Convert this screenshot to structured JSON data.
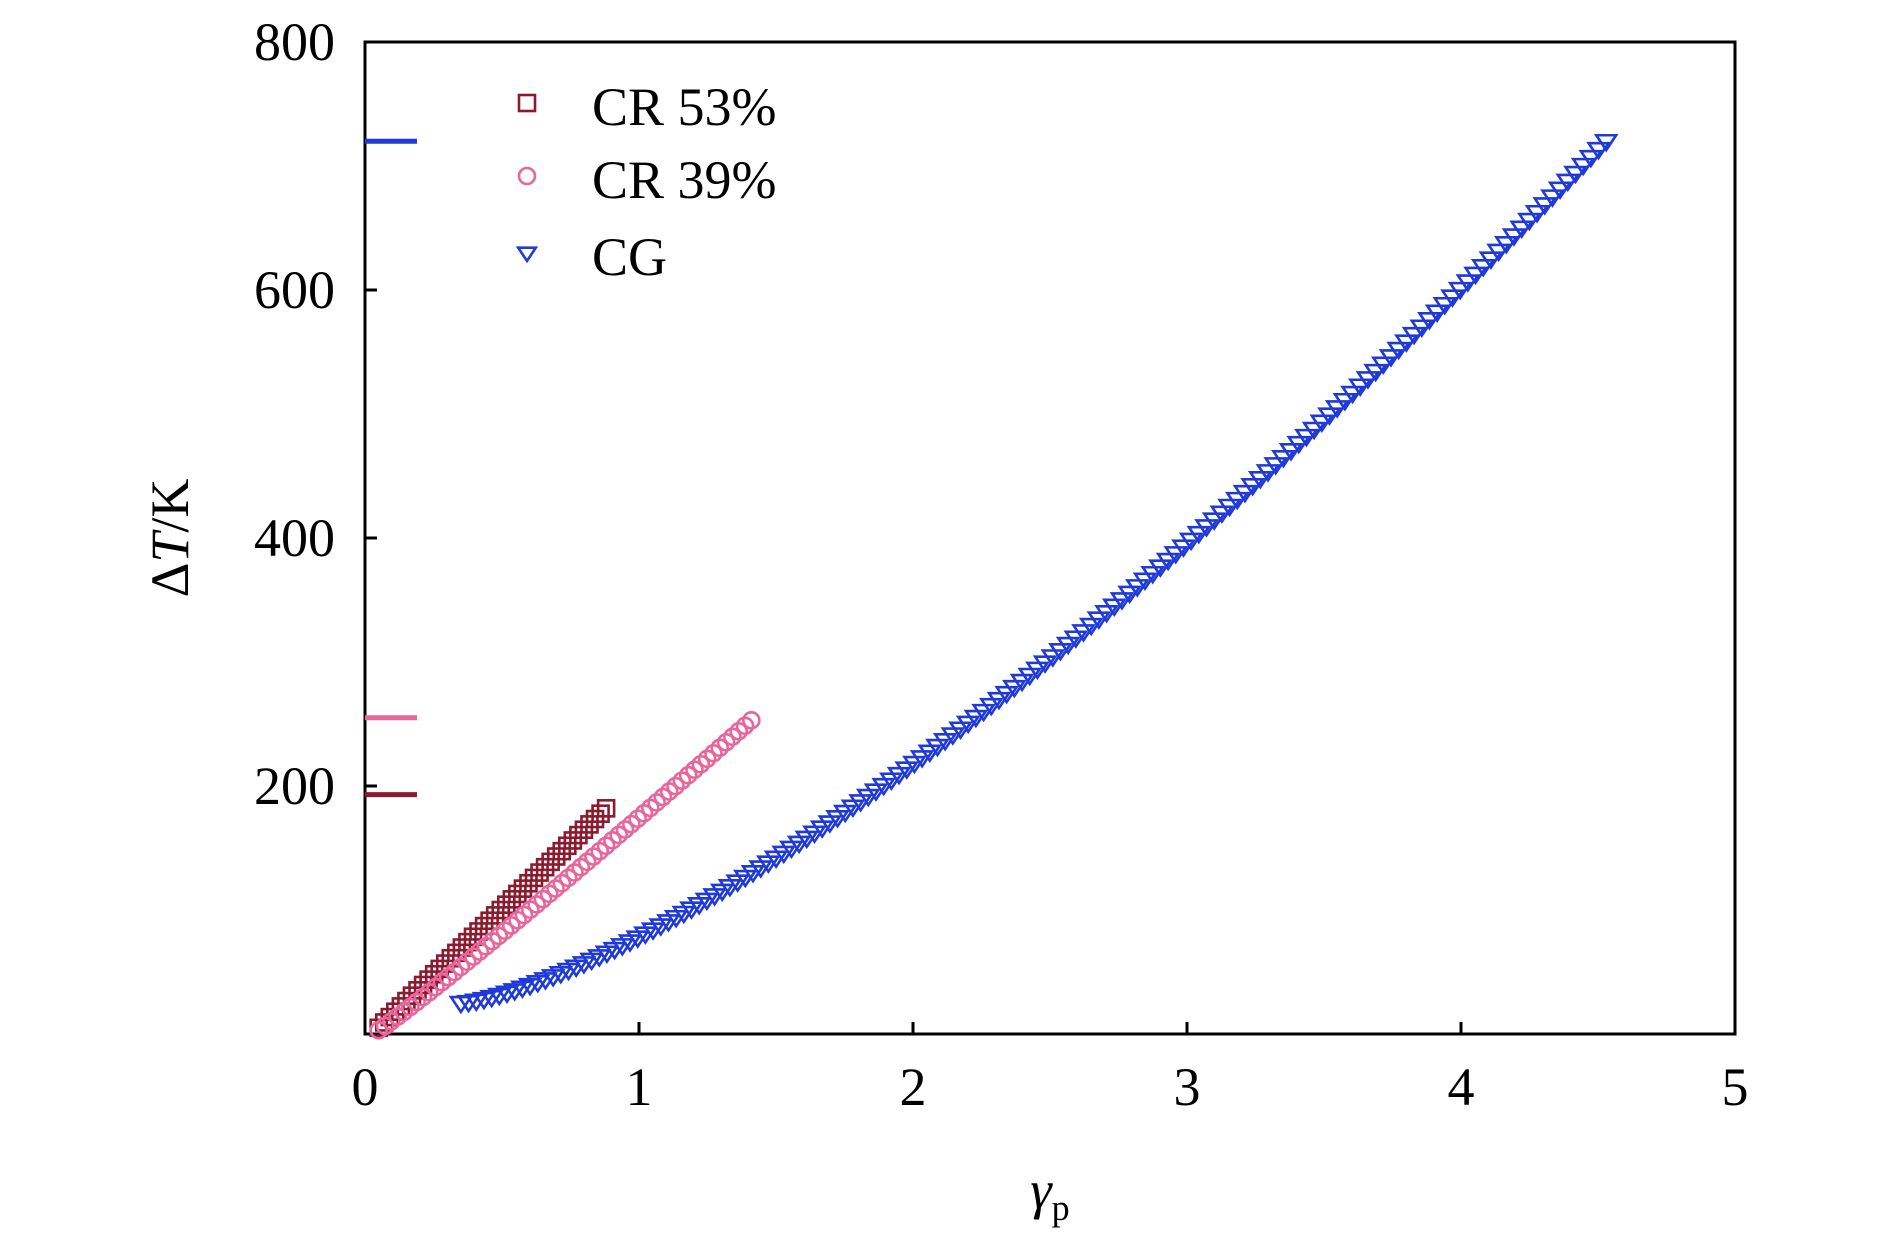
{
  "chart_data": {
    "type": "scatter",
    "title": "",
    "xlabel": {
      "symbol": "γ",
      "subscript": "p"
    },
    "ylabel": {
      "prefix": "Δ",
      "symbol": "T",
      "suffix": "/K"
    },
    "xlim": [
      0,
      5
    ],
    "ylim": [
      0,
      800
    ],
    "x_ticks": [
      "0",
      "1",
      "2",
      "3",
      "4",
      "5"
    ],
    "y_ticks": [
      "200",
      "400",
      "600",
      "800"
    ],
    "grid": false,
    "legend_position": "top-left",
    "series": [
      {
        "name": "CR 53%",
        "marker": "square",
        "color": "#8b1a2e",
        "x_start": 0.05,
        "x_end": 0.88,
        "points": 42,
        "y_start": 5,
        "y_end": 182,
        "curve_exp": 1.0,
        "edge_tick_value": 193
      },
      {
        "name": "CR 39%",
        "marker": "circle",
        "color": "#e8679a",
        "x_start": 0.05,
        "x_end": 1.41,
        "points": 60,
        "y_start": 3,
        "y_end": 253,
        "curve_exp": 1.05,
        "edge_tick_value": 255
      },
      {
        "name": "CG",
        "marker": "triangle-down",
        "color": "#1f3ad8",
        "x_start": 0.35,
        "x_end": 4.53,
        "points": 150,
        "y_start": 25,
        "y_end": 720,
        "curve_exp": 1.38,
        "edge_tick_value": 720
      }
    ]
  }
}
